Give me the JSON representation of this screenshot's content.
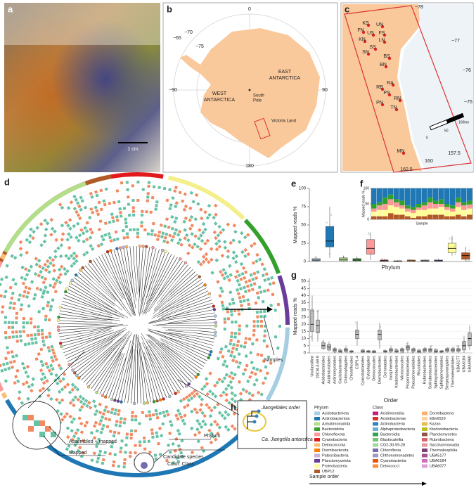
{
  "photo": {
    "label": "a",
    "scale_bar": "1 cm"
  },
  "map_antarctica": {
    "label": "b",
    "ticks": [
      "0",
      "−65",
      "−70",
      "−75",
      "−90",
      "90",
      "180"
    ],
    "west": [
      "WEST",
      "ANTARCTICA"
    ],
    "east": [
      "EAST",
      "ANTARCTICA"
    ],
    "pole": [
      "South",
      "Pole"
    ],
    "region": "Victoria Land"
  },
  "map_victoria": {
    "label": "c",
    "sites": [
      "KS",
      "UN",
      "FN",
      "US",
      "FS",
      "KN",
      "LN",
      "SS",
      "SN",
      "BS",
      "BN",
      "RA",
      "RB",
      "PS",
      "RN",
      "PN",
      "TN",
      "MN"
    ],
    "lat": [
      "−78",
      "−77",
      "−76",
      "−75"
    ],
    "lon": [
      "162.5",
      "160",
      "157.5"
    ],
    "scale": [
      "0",
      "50",
      "100km"
    ]
  },
  "tree": {
    "label": "d",
    "samples": "Samples",
    "phylum": "Phylum",
    "assembled": "Assembled + mapped",
    "mapped": "Mapped",
    "candidate": "Candidate species",
    "color_class": "Color: Class"
  },
  "panel_e": {
    "label": "e",
    "ylabel": "Mapped reads %",
    "xlabel": "Phylum",
    "ylim": [
      0,
      100
    ],
    "yticks": [
      0,
      25,
      50,
      75,
      100
    ],
    "boxes": [
      {
        "color": "#a6cee3",
        "stats": [
          0,
          1,
          2,
          4,
          7
        ]
      },
      {
        "color": "#1f78b4",
        "stats": [
          5,
          20,
          28,
          48,
          75
        ]
      },
      {
        "color": "#b2df8a",
        "stats": [
          0,
          1,
          3,
          5,
          8
        ]
      },
      {
        "color": "#33a02c",
        "stats": [
          0,
          1,
          2,
          4,
          7
        ]
      },
      {
        "color": "#fb9a99",
        "stats": [
          2,
          10,
          18,
          30,
          40
        ]
      },
      {
        "color": "#e31a1c",
        "stats": [
          0,
          0.5,
          1,
          2,
          4
        ]
      },
      {
        "color": "#fdbf6f",
        "stats": [
          0,
          0.2,
          0.5,
          1,
          2
        ]
      },
      {
        "color": "#ff7f00",
        "stats": [
          0,
          0.5,
          1,
          2,
          3
        ]
      },
      {
        "color": "#cab2d6",
        "stats": [
          0,
          0.3,
          1,
          2,
          3
        ]
      },
      {
        "color": "#6a3d9a",
        "stats": [
          0,
          0.5,
          1,
          2,
          4
        ]
      },
      {
        "color": "#ffff99",
        "stats": [
          8,
          12,
          18,
          25,
          35
        ]
      },
      {
        "color": "#b15928",
        "stats": [
          0,
          3,
          8,
          12,
          20
        ]
      }
    ]
  },
  "panel_f": {
    "label": "f",
    "ylabel": "Mapped reads %",
    "xlabel": "Sample",
    "ylim": [
      0,
      100
    ],
    "yticks": [
      0,
      50,
      100
    ],
    "series": [
      {
        "color": "#b15928",
        "values": [
          10,
          10,
          10,
          20,
          15,
          15,
          10,
          5,
          10,
          10,
          15,
          15,
          15,
          10,
          10,
          15,
          10,
          15
        ]
      },
      {
        "color": "#ffff99",
        "values": [
          15,
          20,
          20,
          25,
          25,
          20,
          15,
          15,
          20,
          20,
          20,
          20,
          25,
          20,
          15,
          25,
          20,
          20
        ]
      },
      {
        "color": "#fb9a99",
        "values": [
          10,
          15,
          20,
          20,
          15,
          10,
          10,
          10,
          8,
          15,
          20,
          15,
          10,
          10,
          10,
          15,
          15,
          13
        ]
      },
      {
        "color": "#33a02c",
        "values": [
          15,
          10,
          20,
          15,
          10,
          15,
          10,
          10,
          12,
          10,
          15,
          10,
          15,
          10,
          10,
          15,
          10,
          12
        ]
      },
      {
        "color": "#1f78b4",
        "values": [
          50,
          45,
          30,
          20,
          35,
          40,
          55,
          60,
          50,
          45,
          30,
          40,
          35,
          50,
          55,
          30,
          45,
          40
        ]
      }
    ]
  },
  "panel_g": {
    "label": "g",
    "ylabel": "Mapped reads %",
    "xlabel": "Order",
    "ylim": [
      0,
      52
    ],
    "yticks": [
      0,
      5,
      10,
      15,
      20,
      25,
      30,
      35,
      40,
      45,
      50
    ],
    "categories": [
      "Unclassified",
      "20CM-4-69-9",
      "Acidobacteriales",
      "Acidimicrobiales",
      "Actinomycetales",
      "Caulobacterales",
      "Chitinophagales",
      "Chloroflexales",
      "CSP1-4",
      "Cyanobacteriales",
      "Cytophagales",
      "Deinococcales",
      "Dormibacterales",
      "Gemmatales",
      "Isosphaerales",
      "Ktedonobacterales",
      "Micrococcales",
      "Propionibacteriales",
      "Pseudonocardiales",
      "Rhizobiales",
      "Rubrobacterales",
      "Solirubrobacterales",
      "Sphingobacteriales",
      "Sphingomonadales",
      "Streptosporangiales",
      "Thermoleophilales",
      "UBA5177",
      "UBA6184",
      "UBA6960"
    ],
    "boxes": [
      [
        8,
        15,
        20,
        30,
        40
      ],
      [
        8,
        14,
        19,
        23,
        30
      ],
      [
        2,
        3,
        5,
        7,
        9
      ],
      [
        1,
        2,
        4,
        6,
        8
      ],
      [
        0,
        1,
        2,
        3,
        4
      ],
      [
        0,
        0.5,
        1,
        2,
        3
      ],
      [
        0,
        1,
        2,
        3,
        5
      ],
      [
        0,
        0.5,
        1,
        1.5,
        2
      ],
      [
        5,
        10,
        13,
        16,
        22
      ],
      [
        0,
        0.5,
        1,
        2,
        3
      ],
      [
        0,
        0.5,
        1,
        1.5,
        2
      ],
      [
        0,
        0.3,
        0.8,
        1.5,
        2
      ],
      [
        3,
        9,
        13,
        16,
        21
      ],
      [
        0,
        0.5,
        1,
        1.5,
        2
      ],
      [
        0,
        1,
        2,
        3,
        5
      ],
      [
        0,
        0.5,
        1,
        2,
        3
      ],
      [
        0,
        1,
        2,
        3,
        4
      ],
      [
        0,
        2,
        4,
        5,
        8
      ],
      [
        0,
        1,
        2,
        3,
        4
      ],
      [
        0,
        0.5,
        1,
        2,
        3
      ],
      [
        0,
        1,
        2,
        3,
        4
      ],
      [
        0,
        1,
        2,
        3,
        5
      ],
      [
        0,
        0.5,
        1,
        2,
        3
      ],
      [
        0,
        0.5,
        1,
        1.5,
        2
      ],
      [
        0,
        1,
        2,
        3,
        4
      ],
      [
        0,
        1,
        2,
        3,
        4
      ],
      [
        0,
        1,
        2,
        3,
        5
      ],
      [
        0,
        2,
        5,
        8,
        12
      ],
      [
        2,
        5,
        10,
        14,
        19
      ]
    ]
  },
  "panel_h": {
    "label": "h",
    "order": "Jiangellales order",
    "species": "Ca. Jiangella antarctica"
  },
  "legend": {
    "phylum_title": "Phylum",
    "phyla": [
      {
        "name": "Acidobacteriota",
        "color": "#a6cee3"
      },
      {
        "name": "Actinobacteriota",
        "color": "#1f78b4"
      },
      {
        "name": "Armatimonadota",
        "color": "#b2df8a"
      },
      {
        "name": "Bacteroidota",
        "color": "#33a02c"
      },
      {
        "name": "Chloroflexota",
        "color": "#fb9a99"
      },
      {
        "name": "Cyanobacteria",
        "color": "#e31a1c"
      },
      {
        "name": "Deinococcota",
        "color": "#fdbf6f"
      },
      {
        "name": "Dormibacterota",
        "color": "#ff7f00"
      },
      {
        "name": "Patescibacteria",
        "color": "#cab2d6"
      },
      {
        "name": "Planctomycetota",
        "color": "#6a3d9a"
      },
      {
        "name": "Proteobacteria",
        "color": "#ffff99"
      },
      {
        "name": "UBP12",
        "color": "#b15928"
      }
    ],
    "class_title": "Class",
    "classes": [
      {
        "name": "Acidimicrobiia",
        "color": "#c51b7d"
      },
      {
        "name": "Acidobacteriae",
        "color": "#de2d26"
      },
      {
        "name": "Actinobacteria",
        "color": "#3182bd"
      },
      {
        "name": "Alphaproteobacteria",
        "color": "#6baed6"
      },
      {
        "name": "Bacteroidia",
        "color": "#31a354"
      },
      {
        "name": "Blastocatellia",
        "color": "#74c476"
      },
      {
        "name": "CG2-30-59-28",
        "color": "#a1d99b"
      },
      {
        "name": "Chloroflexia",
        "color": "#756bb1"
      },
      {
        "name": "Chthonomonadetes",
        "color": "#9e9ac8"
      },
      {
        "name": "Cyanobacteriia",
        "color": "#e6550d"
      },
      {
        "name": "Deinococci",
        "color": "#fd8d3c"
      },
      {
        "name": "Dormibacteria",
        "color": "#fdae6b"
      },
      {
        "name": "Ellin6529",
        "color": "#fdd0a2"
      },
      {
        "name": "Kazan",
        "color": "#e7ba52"
      },
      {
        "name": "Ktedonobacteria",
        "color": "#bcbd22"
      },
      {
        "name": "Planctomycetes",
        "color": "#8c564b"
      },
      {
        "name": "Rubrobacteria",
        "color": "#d6616b"
      },
      {
        "name": "Saccharimonadia",
        "color": "#e7969c"
      },
      {
        "name": "Thermoleophilia",
        "color": "#7b4173"
      },
      {
        "name": "UBA5177",
        "color": "#a55194"
      },
      {
        "name": "UBA6184",
        "color": "#ce6dbd"
      },
      {
        "name": "UBA6077",
        "color": "#de9ed6"
      }
    ]
  },
  "sample_order": "Sample order"
}
